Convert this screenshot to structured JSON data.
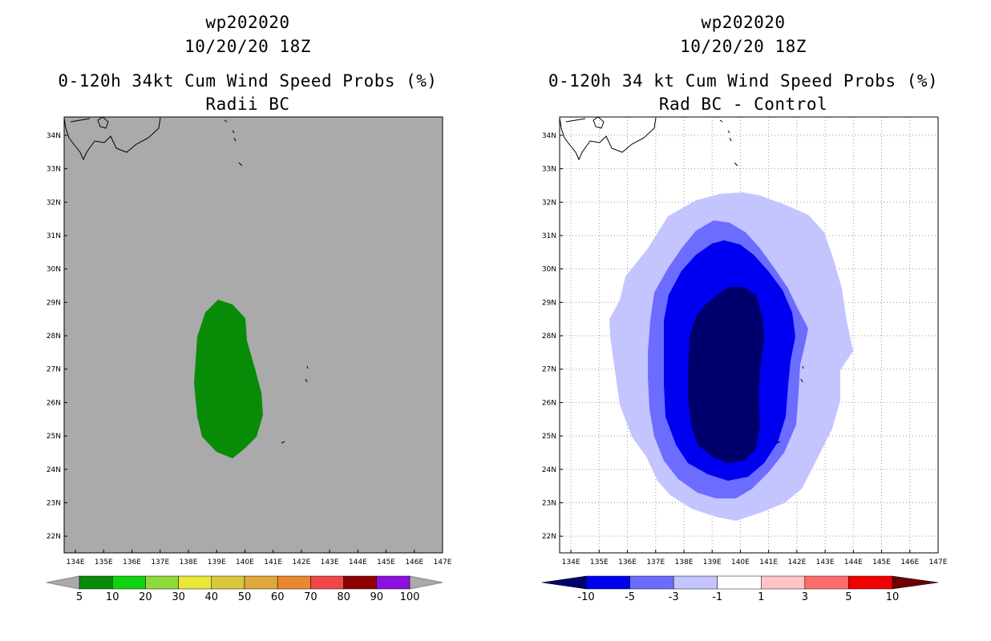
{
  "panels": {
    "left": {
      "title_line1": "wp202020",
      "title_line2": "10/20/20 18Z",
      "title_line3": "0-120h 34kt Cum Wind Speed Probs (%)",
      "title_line4": "Radii BC"
    },
    "right": {
      "title_line1": "wp202020",
      "title_line2": "10/20/20 18Z",
      "title_line3": "0-120h 34 kt Cum Wind Speed Probs (%)",
      "title_line4": "Rad BC - Control"
    }
  },
  "map": {
    "lon_labels": [
      "134E",
      "135E",
      "136E",
      "137E",
      "138E",
      "139E",
      "140E",
      "141E",
      "142E",
      "143E",
      "144E",
      "145E",
      "146E",
      "147E"
    ],
    "lat_labels": [
      "22N",
      "23N",
      "24N",
      "25N",
      "26N",
      "27N",
      "28N",
      "29N",
      "30N",
      "31N",
      "32N",
      "33N",
      "34N"
    ],
    "lon_values": [
      134,
      135,
      136,
      137,
      138,
      139,
      140,
      141,
      142,
      143,
      144,
      145,
      146,
      147
    ],
    "lat_values": [
      22,
      23,
      24,
      25,
      26,
      27,
      28,
      29,
      30,
      31,
      32,
      33,
      34
    ],
    "lon_range": [
      133.6,
      147.0
    ],
    "lat_range": [
      21.5,
      34.55
    ]
  },
  "colorbars": {
    "left": {
      "labels": [
        "5",
        "10",
        "20",
        "30",
        "40",
        "50",
        "60",
        "70",
        "80",
        "90",
        "100"
      ],
      "colors": [
        "#088c08",
        "#0fd30f",
        "#8fd93a",
        "#e8e83a",
        "#d8c83a",
        "#e0a83a",
        "#e88830",
        "#f04848",
        "#8c0000",
        "#8c10e0"
      ],
      "end_color": "#aaaaaa"
    },
    "right": {
      "labels": [
        "-10",
        "-5",
        "-3",
        "-1",
        "1",
        "3",
        "5",
        "10"
      ],
      "colors": [
        "#00006c",
        "#0000f0",
        "#6c6cff",
        "#c4c4ff",
        "#ffffff",
        "#ffc4c4",
        "#ff6c6c",
        "#f00000",
        "#6c0000"
      ]
    }
  },
  "colors": {
    "map_background_left": "#aaaaaa",
    "prob_green": "#088c08",
    "diff_light": "#c4c4ff",
    "diff_mid": "#6c6cff",
    "diff_blue": "#0000f0",
    "diff_dark": "#00006c"
  }
}
